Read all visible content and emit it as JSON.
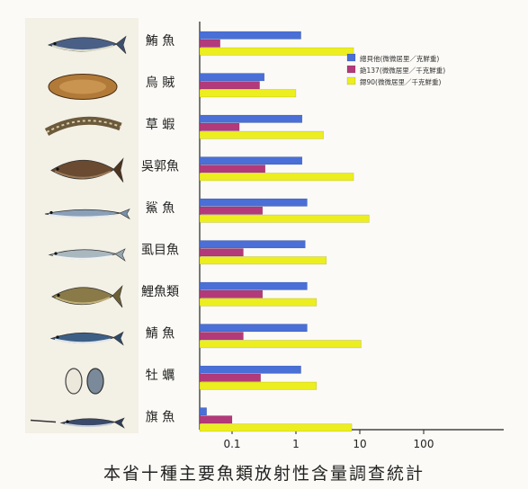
{
  "chart_data": {
    "type": "bar",
    "orientation": "horizontal",
    "x_scale": "log",
    "xlim": [
      0.03,
      1000
    ],
    "x_ticks": [
      "0.1",
      "1",
      "10",
      "100"
    ],
    "categories": [
      "鮪 魚",
      "烏 賊",
      "草 蝦",
      "吳郭魚",
      "鯊 魚",
      "虱目魚",
      "鯉魚類",
      "鯖 魚",
      "牡 蠣",
      "旗 魚"
    ],
    "series": [
      {
        "name": "總貝他(微微居里／克鮮重)",
        "color": "#4a6fd6",
        "values": [
          1.2,
          0.32,
          1.25,
          1.25,
          1.5,
          1.4,
          1.5,
          1.5,
          1.2,
          0.04
        ]
      },
      {
        "name": "銫137(微微居里／千克鮮重)",
        "color": "#b33a7a",
        "values": [
          0.065,
          0.27,
          0.13,
          0.33,
          0.3,
          0.15,
          0.3,
          0.15,
          0.28,
          0.1
        ]
      },
      {
        "name": "鍶90(微微居里／千克鮮重)",
        "color": "#ecee1f",
        "values": [
          8,
          1,
          2.7,
          8,
          14,
          3,
          2.1,
          10.5,
          2.1,
          7.5
        ]
      }
    ],
    "legend_position": "top-right",
    "title": "本省十種主要魚類放射性含量調查統計"
  },
  "icons": [
    "tuna-icon",
    "squid-icon",
    "shrimp-icon",
    "tilapia-icon",
    "shark-icon",
    "milkfish-icon",
    "carp-icon",
    "mackerel-icon",
    "oyster-icon",
    "swordfish-icon"
  ]
}
